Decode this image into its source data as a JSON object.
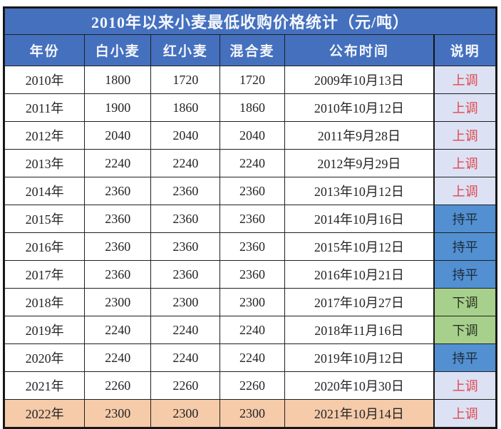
{
  "chart_data": {
    "type": "table",
    "title": "2010年以来小麦最低收购价格统计（元/吨）",
    "columns": [
      "年份",
      "白小麦",
      "红小麦",
      "混合麦",
      "公布时间",
      "说明"
    ],
    "rows": [
      {
        "year": "2010年",
        "white_wheat": 1800,
        "red_wheat": 1720,
        "mixed_wheat": 1720,
        "publish_date": "2009年10月13日",
        "remark": "上调",
        "remark_type": "up",
        "highlight": false
      },
      {
        "year": "2011年",
        "white_wheat": 1900,
        "red_wheat": 1860,
        "mixed_wheat": 1860,
        "publish_date": "2010年10月12日",
        "remark": "上调",
        "remark_type": "up",
        "highlight": false
      },
      {
        "year": "2012年",
        "white_wheat": 2040,
        "red_wheat": 2040,
        "mixed_wheat": 2040,
        "publish_date": "2011年9月28日",
        "remark": "上调",
        "remark_type": "up",
        "highlight": false
      },
      {
        "year": "2013年",
        "white_wheat": 2240,
        "red_wheat": 2240,
        "mixed_wheat": 2240,
        "publish_date": "2012年9月29日",
        "remark": "上调",
        "remark_type": "up",
        "highlight": false
      },
      {
        "year": "2014年",
        "white_wheat": 2360,
        "red_wheat": 2360,
        "mixed_wheat": 2360,
        "publish_date": "2013年10月12日",
        "remark": "上调",
        "remark_type": "up",
        "highlight": false
      },
      {
        "year": "2015年",
        "white_wheat": 2360,
        "red_wheat": 2360,
        "mixed_wheat": 2360,
        "publish_date": "2014年10月16日",
        "remark": "持平",
        "remark_type": "flat",
        "highlight": false
      },
      {
        "year": "2016年",
        "white_wheat": 2360,
        "red_wheat": 2360,
        "mixed_wheat": 2360,
        "publish_date": "2015年10月12日",
        "remark": "持平",
        "remark_type": "flat",
        "highlight": false
      },
      {
        "year": "2017年",
        "white_wheat": 2360,
        "red_wheat": 2360,
        "mixed_wheat": 2360,
        "publish_date": "2016年10月21日",
        "remark": "持平",
        "remark_type": "flat",
        "highlight": false
      },
      {
        "year": "2018年",
        "white_wheat": 2300,
        "red_wheat": 2300,
        "mixed_wheat": 2300,
        "publish_date": "2017年10月27日",
        "remark": "下调",
        "remark_type": "down",
        "highlight": false
      },
      {
        "year": "2019年",
        "white_wheat": 2240,
        "red_wheat": 2240,
        "mixed_wheat": 2240,
        "publish_date": "2018年11月16日",
        "remark": "下调",
        "remark_type": "down",
        "highlight": false
      },
      {
        "year": "2020年",
        "white_wheat": 2240,
        "red_wheat": 2240,
        "mixed_wheat": 2240,
        "publish_date": "2019年10月12日",
        "remark": "持平",
        "remark_type": "flat",
        "highlight": false
      },
      {
        "year": "2021年",
        "white_wheat": 2260,
        "red_wheat": 2260,
        "mixed_wheat": 2260,
        "publish_date": "2020年10月30日",
        "remark": "上调",
        "remark_type": "up",
        "highlight": false
      },
      {
        "year": "2022年",
        "white_wheat": 2300,
        "red_wheat": 2300,
        "mixed_wheat": 2300,
        "publish_date": "2021年10月14日",
        "remark": "上调",
        "remark_type": "up",
        "highlight": true
      }
    ]
  },
  "colors": {
    "header_blue": "#4470be",
    "header_text": "#f5f7fc",
    "remark_up_bg": "#dce2f4",
    "remark_up_text": "#e0474f",
    "remark_flat_bg": "#5290d2",
    "remark_down_bg": "#a8d08d",
    "highlight_bg": "#f6cba9",
    "grid_border": "#1f1f1f",
    "outer_border": "#141414",
    "cell_text": "#242424"
  }
}
